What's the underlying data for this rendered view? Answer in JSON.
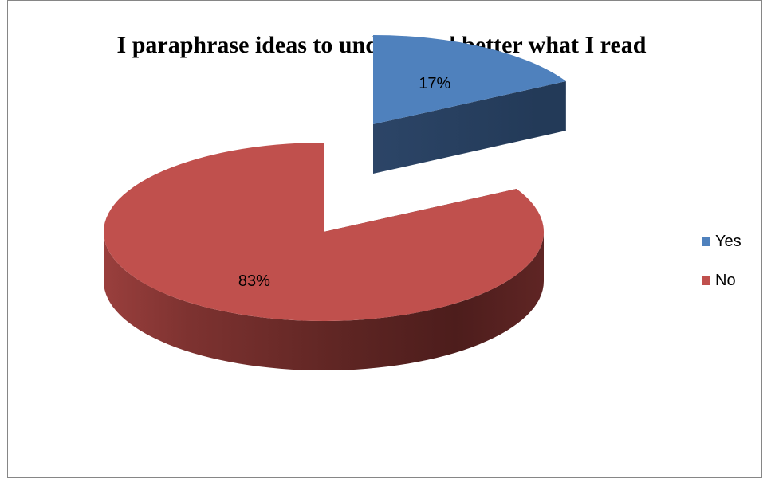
{
  "chart_data": {
    "type": "pie",
    "title": "I paraphrase ideas to understand better what I read",
    "categories": [
      "Yes",
      "No"
    ],
    "values": [
      17,
      83
    ],
    "data_labels": [
      "17%",
      "83%"
    ],
    "colors": [
      "#4f81bd",
      "#c0504d"
    ],
    "legend_position": "right",
    "style": "3d-exploded"
  }
}
